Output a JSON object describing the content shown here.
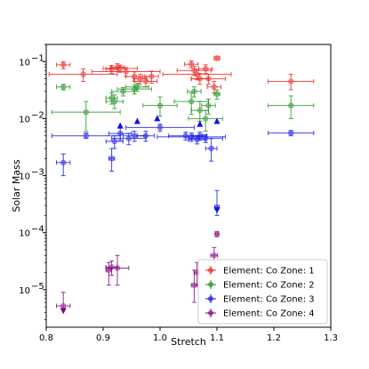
{
  "chart_data": {
    "type": "scatter",
    "xlabel": "Stretch",
    "ylabel": "Solar Mass",
    "xlim": [
      0.8,
      1.3
    ],
    "ylim": [
      2.2e-06,
      0.2
    ],
    "yscale": "log",
    "grid": false,
    "legend_position": "lower-right",
    "x_ticks": [
      {
        "value": 0.8,
        "label": "0.8"
      },
      {
        "value": 0.9,
        "label": "0.9"
      },
      {
        "value": 1.0,
        "label": "1.0"
      },
      {
        "value": 1.1,
        "label": "1.1"
      },
      {
        "value": 1.2,
        "label": "1.2"
      },
      {
        "value": 1.3,
        "label": "1.3"
      }
    ],
    "y_ticks": [
      {
        "value": 1e-05,
        "base": "10",
        "exp": "−5"
      },
      {
        "value": 0.0001,
        "base": "10",
        "exp": "−4"
      },
      {
        "value": 0.001,
        "base": "10",
        "exp": "−3"
      },
      {
        "value": 0.01,
        "base": "10",
        "exp": "−2"
      },
      {
        "value": 0.1,
        "base": "10",
        "exp": "−1"
      }
    ],
    "series": [
      {
        "name": "Element: Co  Zone: 1",
        "color": "#e8231e",
        "points": [
          {
            "x": 0.83,
            "y": 0.088,
            "xerr": 0.012,
            "ylo": 0.075,
            "yhi": 0.1
          },
          {
            "x": 0.865,
            "y": 0.06,
            "xerr": 0.06,
            "ylo": 0.045,
            "yhi": 0.075
          },
          {
            "x": 0.915,
            "y": 0.074,
            "xerr": 0.01,
            "ylo": 0.062,
            "yhi": 0.086
          },
          {
            "x": 0.925,
            "y": 0.08,
            "xerr": 0.012,
            "ylo": 0.068,
            "yhi": 0.092
          },
          {
            "x": 0.93,
            "y": 0.076,
            "xerr": 0.03,
            "ylo": 0.065,
            "yhi": 0.087
          },
          {
            "x": 0.94,
            "y": 0.067,
            "xerr": 0.06,
            "ylo": 0.055,
            "yhi": 0.079
          },
          {
            "x": 0.955,
            "y": 0.055,
            "xerr": 0.015,
            "ylo": 0.045,
            "yhi": 0.066
          },
          {
            "x": 0.965,
            "y": 0.05,
            "xerr": 0.012,
            "ylo": 0.04,
            "yhi": 0.06
          },
          {
            "x": 0.975,
            "y": 0.045,
            "xerr": 0.02,
            "ylo": 0.036,
            "yhi": 0.055
          },
          {
            "x": 0.985,
            "y": 0.055,
            "xerr": 0.012,
            "ylo": 0.042,
            "yhi": 0.068
          },
          {
            "x": 1.055,
            "y": 0.09,
            "xerr": 0.012,
            "ylo": 0.077,
            "yhi": 0.103
          },
          {
            "x": 1.06,
            "y": 0.07,
            "xerr": 0.03,
            "ylo": 0.057,
            "yhi": 0.083
          },
          {
            "x": 1.065,
            "y": 0.06,
            "xerr": 0.06,
            "ylo": 0.048,
            "yhi": 0.073
          },
          {
            "x": 1.07,
            "y": 0.05,
            "xerr": 0.015,
            "ylo": 0.04,
            "yhi": 0.062
          },
          {
            "x": 1.08,
            "y": 0.075,
            "xerr": 0.012,
            "ylo": 0.062,
            "yhi": 0.088
          },
          {
            "x": 1.085,
            "y": 0.05,
            "xerr": 0.03,
            "ylo": 0.04,
            "yhi": 0.06
          },
          {
            "x": 1.095,
            "y": 0.036,
            "xerr": 0.012,
            "ylo": 0.028,
            "yhi": 0.045
          },
          {
            "x": 1.1,
            "y": 0.115,
            "xerr": 0.005,
            "ylo": 0.105,
            "yhi": 0.125
          },
          {
            "x": 1.23,
            "y": 0.045,
            "xerr": 0.04,
            "ylo": 0.032,
            "yhi": 0.06
          }
        ]
      },
      {
        "name": "Element: Co  Zone: 2",
        "color": "#1f8f1f",
        "points": [
          {
            "x": 0.83,
            "y": 0.036,
            "xerr": 0.012,
            "ylo": 0.032,
            "yhi": 0.04
          },
          {
            "x": 0.87,
            "y": 0.013,
            "xerr": 0.06,
            "ylo": 0.006,
            "yhi": 0.02
          },
          {
            "x": 0.915,
            "y": 0.023,
            "xerr": 0.01,
            "ylo": 0.018,
            "yhi": 0.028
          },
          {
            "x": 0.92,
            "y": 0.02,
            "xerr": 0.015,
            "ylo": 0.015,
            "yhi": 0.026
          },
          {
            "x": 0.935,
            "y": 0.03,
            "xerr": 0.02,
            "ylo": 0.025,
            "yhi": 0.035
          },
          {
            "x": 0.955,
            "y": 0.033,
            "xerr": 0.03,
            "ylo": 0.027,
            "yhi": 0.039
          },
          {
            "x": 0.96,
            "y": 0.036,
            "xerr": 0.02,
            "ylo": 0.03,
            "yhi": 0.042
          },
          {
            "x": 1.0,
            "y": 0.017,
            "xerr": 0.03,
            "ylo": 0.011,
            "yhi": 0.024
          },
          {
            "x": 1.055,
            "y": 0.02,
            "xerr": 0.03,
            "ylo": 0.012,
            "yhi": 0.028
          },
          {
            "x": 1.06,
            "y": 0.03,
            "xerr": 0.012,
            "ylo": 0.024,
            "yhi": 0.036
          },
          {
            "x": 1.07,
            "y": 0.014,
            "xerr": 0.015,
            "ylo": 0.009,
            "yhi": 0.02
          },
          {
            "x": 1.08,
            "y": 0.01,
            "xerr": 0.03,
            "ylo": 0.006,
            "yhi": 0.014
          },
          {
            "x": 1.085,
            "y": 0.017,
            "xerr": 0.012,
            "ylo": 0.012,
            "yhi": 0.022
          },
          {
            "x": 1.1,
            "y": 0.027,
            "xerr": 0.005,
            "ylo": 0.022,
            "yhi": 0.032
          },
          {
            "x": 1.23,
            "y": 0.017,
            "xerr": 0.04,
            "ylo": 0.01,
            "yhi": 0.025
          }
        ]
      },
      {
        "name": "Element: Co  Zone: 3",
        "color": "#1212e6",
        "points": [
          {
            "x": 0.83,
            "y": 0.0017,
            "xerr": 0.012,
            "ylo": 0.001,
            "yhi": 0.0024
          },
          {
            "x": 0.87,
            "y": 0.005,
            "xerr": 0.06,
            "ylo": 0.0045,
            "yhi": 0.0056
          },
          {
            "x": 0.915,
            "y": 0.002,
            "xerr": 0.005,
            "ylo": 0.0012,
            "yhi": 0.003
          },
          {
            "x": 0.92,
            "y": 0.004,
            "xerr": 0.015,
            "ylo": 0.003,
            "yhi": 0.005
          },
          {
            "x": 0.93,
            "y": 0.0055,
            "xerr": 0.02,
            "ylo": 0.0042,
            "yhi": 0.0068
          },
          {
            "x": 0.945,
            "y": 0.0045,
            "xerr": 0.03,
            "ylo": 0.0035,
            "yhi": 0.0055
          },
          {
            "x": 0.955,
            "y": 0.005,
            "xerr": 0.02,
            "ylo": 0.004,
            "yhi": 0.006
          },
          {
            "x": 0.975,
            "y": 0.005,
            "xerr": 0.015,
            "ylo": 0.004,
            "yhi": 0.006
          },
          {
            "x": 1.0,
            "y": 0.007,
            "xerr": 0.06,
            "ylo": 0.006,
            "yhi": 0.008
          },
          {
            "x": 1.045,
            "y": 0.005,
            "xerr": 0.03,
            "ylo": 0.0042,
            "yhi": 0.0058
          },
          {
            "x": 1.055,
            "y": 0.0048,
            "xerr": 0.06,
            "ylo": 0.004,
            "yhi": 0.0056
          },
          {
            "x": 1.065,
            "y": 0.0043,
            "xerr": 0.015,
            "ylo": 0.0036,
            "yhi": 0.005
          },
          {
            "x": 1.07,
            "y": 0.005,
            "xerr": 0.012,
            "ylo": 0.0042,
            "yhi": 0.0058
          },
          {
            "x": 1.08,
            "y": 0.0045,
            "xerr": 0.03,
            "ylo": 0.0038,
            "yhi": 0.0052
          },
          {
            "x": 1.09,
            "y": 0.003,
            "xerr": 0.01,
            "ylo": 0.0018,
            "yhi": 0.0045
          },
          {
            "x": 1.1,
            "y": 0.00028,
            "xerr": 0.004,
            "ylo": 0.0002,
            "yhi": 0.00055
          },
          {
            "x": 1.23,
            "y": 0.0056,
            "xerr": 0.04,
            "ylo": 0.005,
            "yhi": 0.0062
          }
        ],
        "limits": [
          {
            "x": 0.93,
            "y": 0.0075,
            "dir": "up"
          },
          {
            "x": 0.96,
            "y": 0.009,
            "dir": "up"
          },
          {
            "x": 0.995,
            "y": 0.01,
            "dir": "up"
          },
          {
            "x": 1.07,
            "y": 0.008,
            "dir": "up"
          },
          {
            "x": 1.1,
            "y": 0.009,
            "dir": "up"
          },
          {
            "x": 1.1,
            "y": 0.00025,
            "dir": "down"
          }
        ]
      },
      {
        "name": "Element: Co  Zone: 4",
        "color": "#800080",
        "points": [
          {
            "x": 0.83,
            "y": 5.2e-06,
            "xerr": 0.012,
            "ylo": 4.5e-06,
            "yhi": 9e-06
          },
          {
            "x": 0.91,
            "y": 2.2e-05,
            "xerr": 0.005,
            "ylo": 1.2e-05,
            "yhi": 3e-05
          },
          {
            "x": 0.915,
            "y": 2.5e-05,
            "xerr": 0.01,
            "ylo": 1.8e-05,
            "yhi": 3.2e-05
          },
          {
            "x": 0.925,
            "y": 2.4e-05,
            "xerr": 0.02,
            "ylo": 1.2e-05,
            "yhi": 4e-05
          },
          {
            "x": 1.06,
            "y": 1.2e-05,
            "xerr": 0.005,
            "ylo": 6e-06,
            "yhi": 2.2e-05
          },
          {
            "x": 1.065,
            "y": 2e-05,
            "xerr": 0.005,
            "ylo": 1.2e-05,
            "yhi": 3e-05
          },
          {
            "x": 1.095,
            "y": 4e-05,
            "xerr": 0.006,
            "ylo": 3e-05,
            "yhi": 5.5e-05
          },
          {
            "x": 1.1,
            "y": 9.5e-05,
            "xerr": 0.003,
            "ylo": 8.5e-05,
            "yhi": 0.000105
          }
        ],
        "limits": [
          {
            "x": 0.83,
            "y": 4.3e-06,
            "dir": "down"
          }
        ]
      }
    ]
  }
}
